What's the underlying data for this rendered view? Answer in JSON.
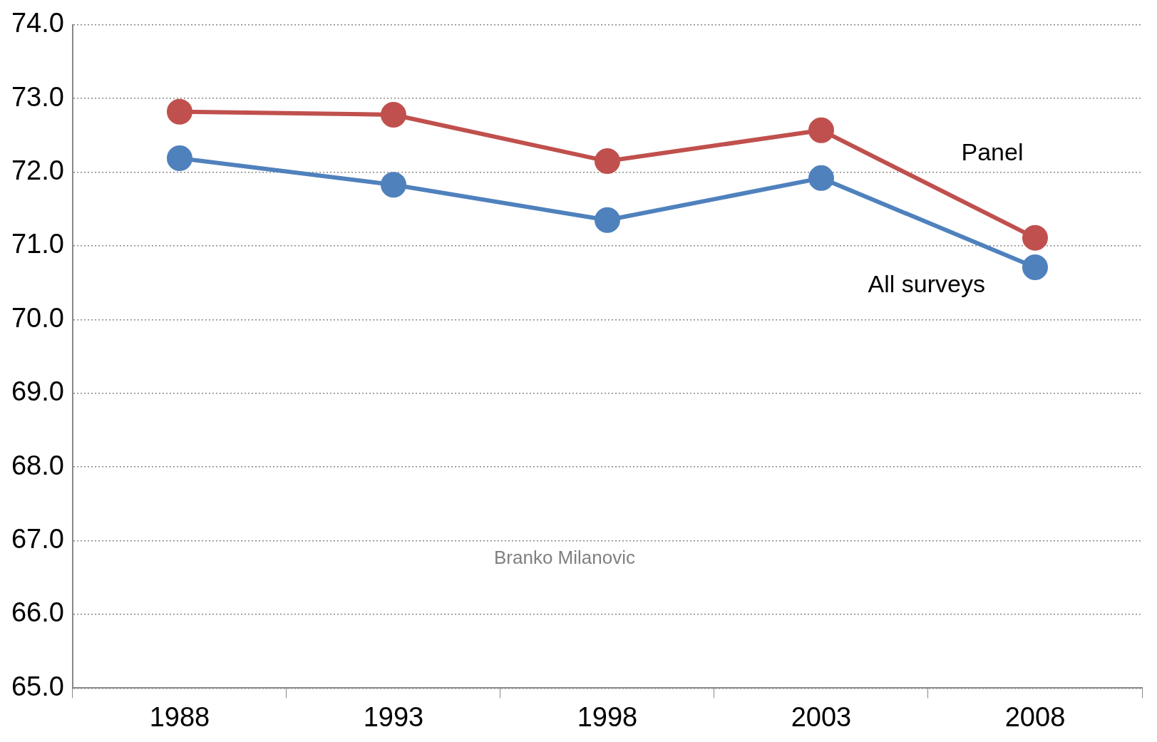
{
  "chart_data": {
    "type": "line",
    "categories": [
      "1988",
      "1993",
      "1998",
      "2003",
      "2008"
    ],
    "series": [
      {
        "name": "Panel",
        "color": "#c0504d",
        "values": [
          72.82,
          72.78,
          72.15,
          72.57,
          71.11
        ]
      },
      {
        "name": "All surveys",
        "color": "#4f81bd",
        "values": [
          72.19,
          71.83,
          71.35,
          71.92,
          70.71
        ]
      }
    ],
    "ylim": [
      65,
      74
    ],
    "yticks": [
      {
        "value": 65,
        "label": "65.0"
      },
      {
        "value": 66,
        "label": "66.0"
      },
      {
        "value": 67,
        "label": "67.0"
      },
      {
        "value": 68,
        "label": "68.0"
      },
      {
        "value": 69,
        "label": "69.0"
      },
      {
        "value": 70,
        "label": "70.0"
      },
      {
        "value": 71,
        "label": "71.0"
      },
      {
        "value": 72,
        "label": "72.0"
      },
      {
        "value": 73,
        "label": "73.0"
      },
      {
        "value": 74,
        "label": "74.0"
      }
    ],
    "grid": "y",
    "legend": false,
    "marker": "circle",
    "line_style": "solid",
    "annotations": [
      "Branko Milanovic"
    ]
  }
}
